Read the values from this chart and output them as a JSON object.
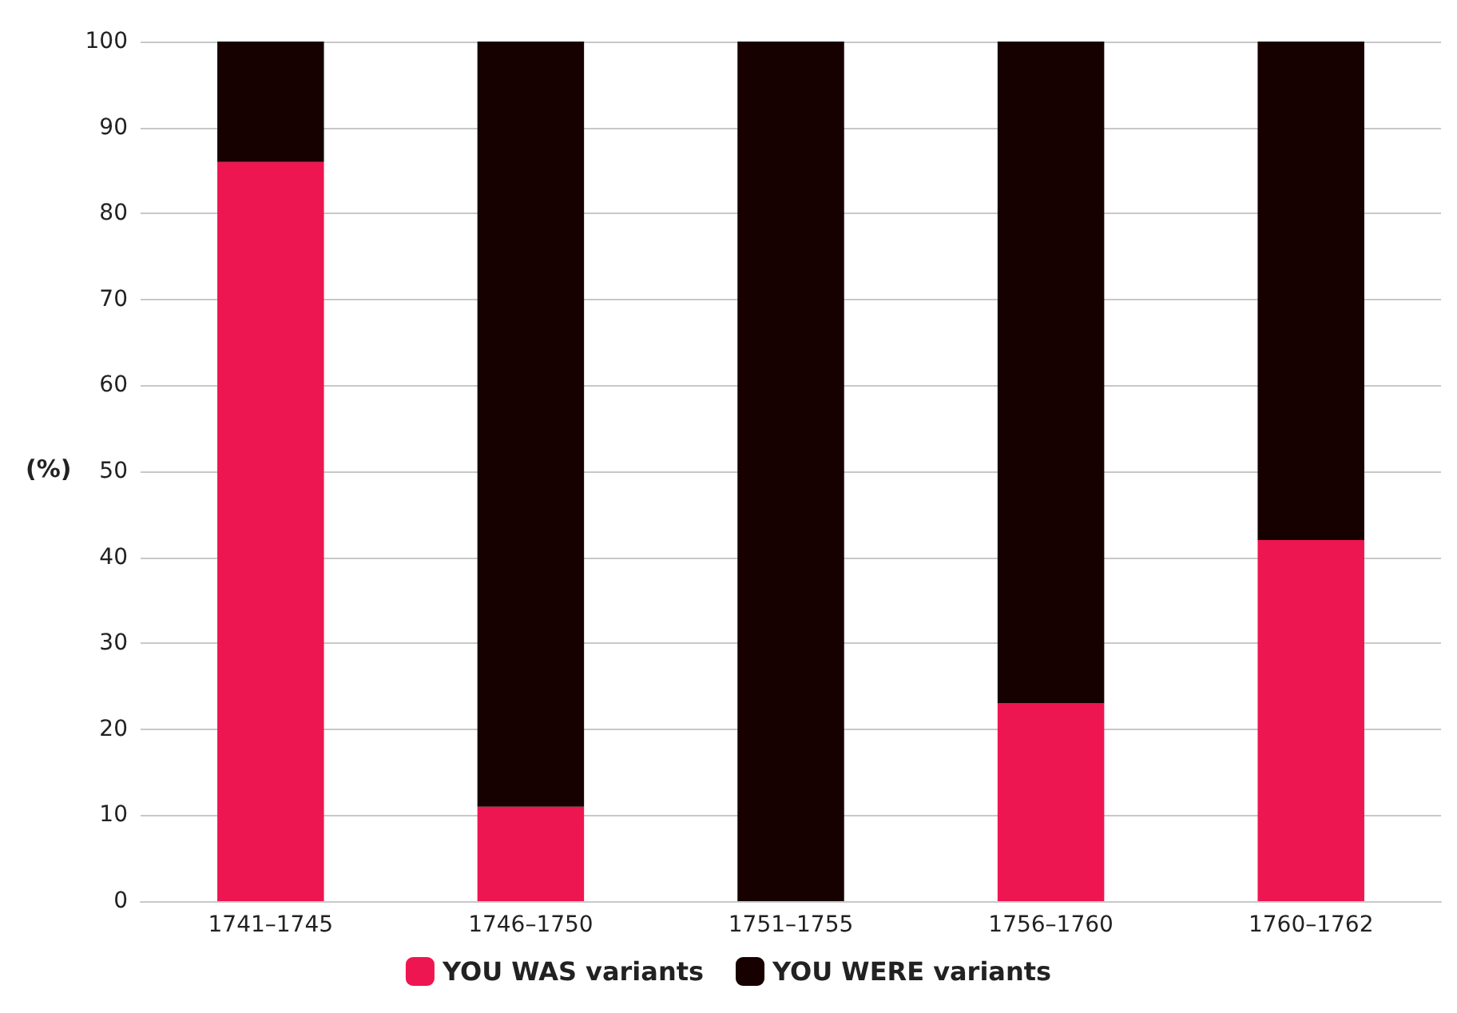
{
  "chart_data": {
    "type": "bar",
    "stacked": true,
    "ylabel": "(%)",
    "categories": [
      "1741–1745",
      "1746–1750",
      "1751–1755",
      "1756–1760",
      "1760–1762"
    ],
    "series": [
      {
        "name": "YOU WAS variants",
        "color": "#ee1651",
        "values": [
          86,
          11,
          0,
          23,
          42
        ]
      },
      {
        "name": "YOU WERE variants",
        "color": "#170000",
        "values": [
          14,
          89,
          100,
          77,
          58
        ]
      }
    ],
    "ylim": [
      0,
      100
    ],
    "yticks": [
      0,
      10,
      20,
      30,
      40,
      50,
      60,
      70,
      80,
      90,
      100
    ],
    "grid": "y",
    "legend": "bottom"
  }
}
